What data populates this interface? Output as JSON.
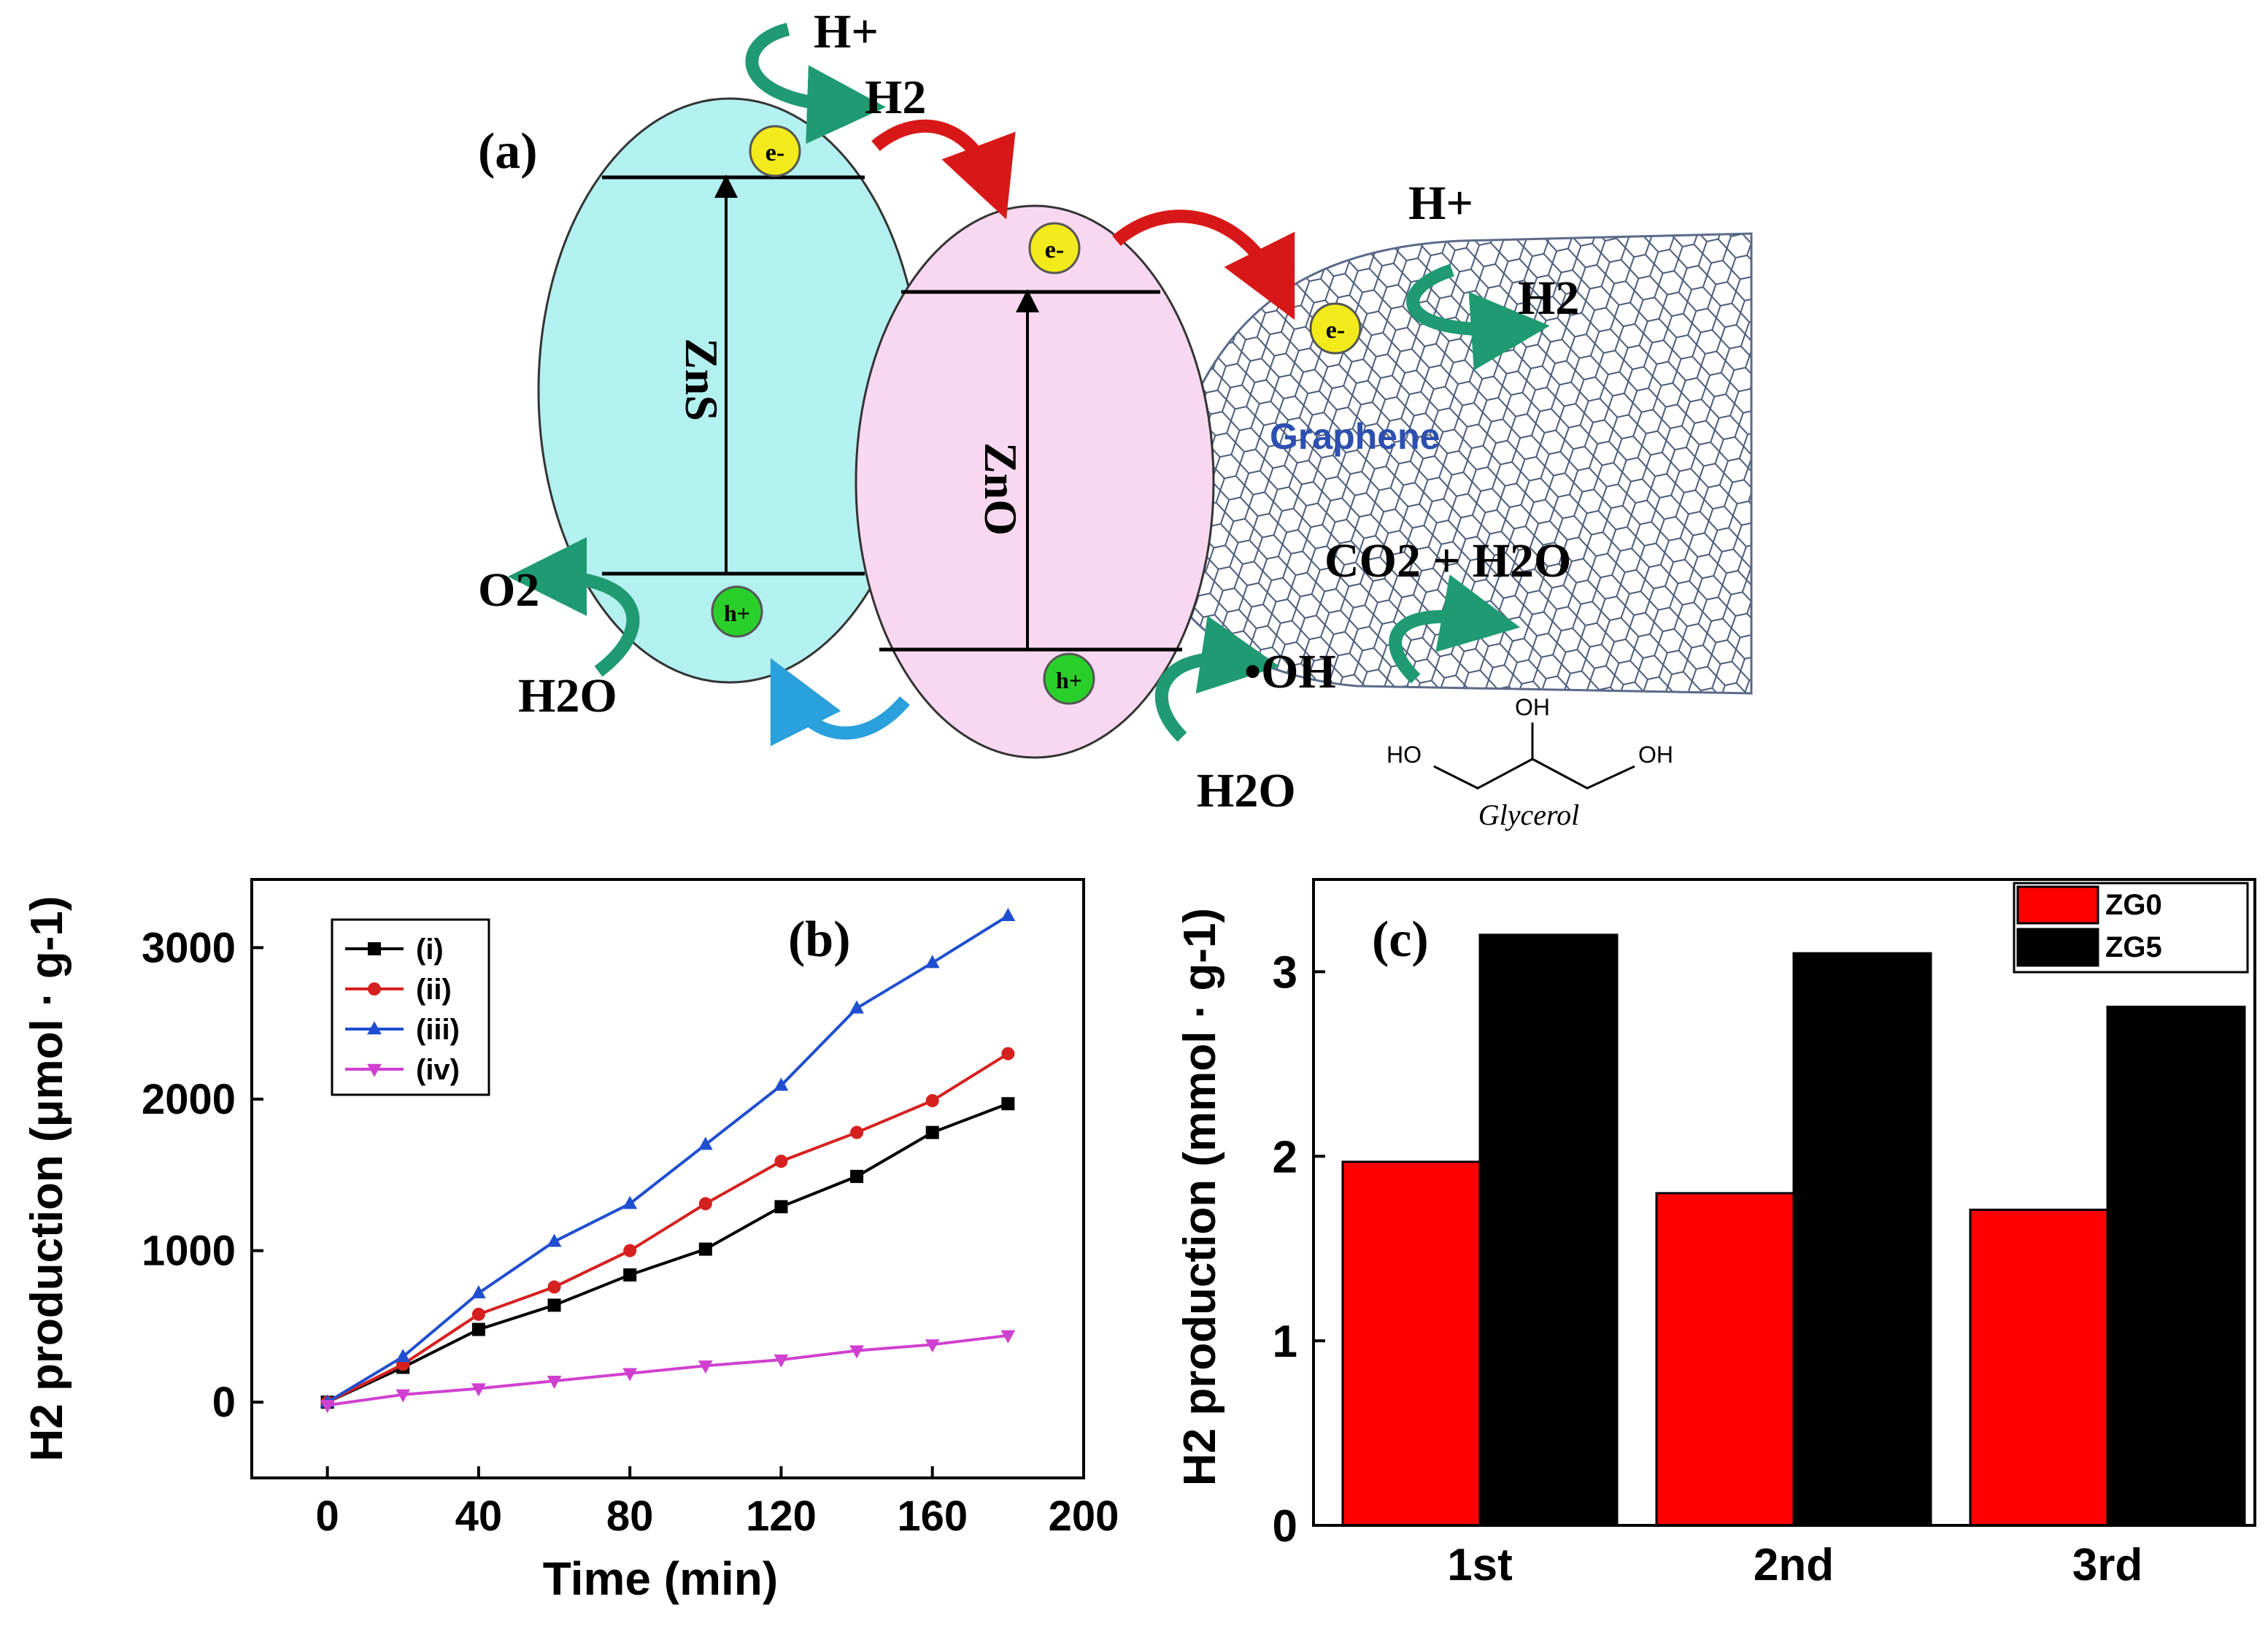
{
  "schematic": {
    "panel_label": "(a)",
    "zns_label": "ZnS",
    "zno_label": "ZnO",
    "graphene_label": "Graphene",
    "electron": "e-",
    "hole": "h+",
    "h_plus": "H+",
    "h2": "H2",
    "o2": "O2",
    "h2o": "H2O",
    "oh_radical": "•OH",
    "co2_h2o": "CO2 + H2O",
    "glycerol_label": "Glycerol",
    "oh_group": "OH",
    "ho_group": "HO"
  },
  "chart_data": [
    {
      "type": "line",
      "panel_label": "(b)",
      "xlabel": "Time (min)",
      "ylabel": "H2 production (μmol · g-1)",
      "xlim": [
        -20,
        200
      ],
      "ylim": [
        -500,
        3450
      ],
      "xticks": [
        0,
        40,
        80,
        120,
        160,
        200
      ],
      "yticks": [
        0,
        1000,
        2000,
        3000
      ],
      "legend_position": "top-left",
      "x": [
        0,
        20,
        40,
        60,
        80,
        100,
        120,
        140,
        160,
        180
      ],
      "series": [
        {
          "name": "(i)",
          "color": "#000000",
          "marker": "square",
          "values": [
            0,
            230,
            480,
            640,
            840,
            1010,
            1290,
            1490,
            1780,
            1970
          ]
        },
        {
          "name": "(ii)",
          "color": "#d62020",
          "marker": "circle",
          "values": [
            0,
            250,
            580,
            760,
            1000,
            1310,
            1590,
            1780,
            1990,
            2300
          ]
        },
        {
          "name": "(iii)",
          "color": "#1f4fd0",
          "marker": "triangle-up",
          "values": [
            0,
            300,
            720,
            1060,
            1310,
            1700,
            2090,
            2600,
            2900,
            3210
          ]
        },
        {
          "name": "(iv)",
          "color": "#d040d0",
          "marker": "triangle-down",
          "values": [
            -20,
            50,
            90,
            140,
            190,
            240,
            280,
            340,
            380,
            440
          ]
        }
      ]
    },
    {
      "type": "bar",
      "panel_label": "(c)",
      "xlabel": "",
      "ylabel": "H2 production (mmol · g-1)",
      "ylim": [
        0,
        3.5
      ],
      "yticks": [
        0,
        1,
        2,
        3
      ],
      "legend_position": "top-right",
      "categories": [
        "1st",
        "2nd",
        "3rd"
      ],
      "series": [
        {
          "name": "ZG0",
          "color": "#ff0000",
          "values": [
            1.97,
            1.8,
            1.71
          ]
        },
        {
          "name": "ZG5",
          "color": "#000000",
          "values": [
            3.2,
            3.1,
            2.81
          ]
        }
      ]
    }
  ]
}
